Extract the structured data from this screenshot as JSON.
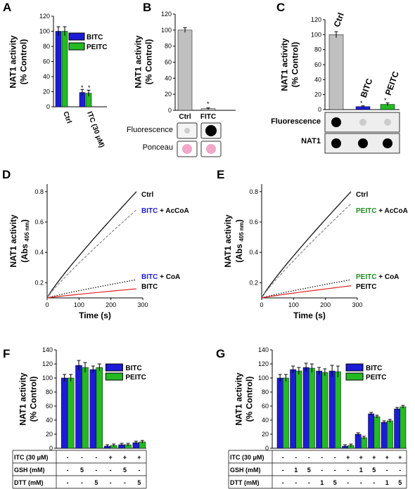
{
  "colors": {
    "bitc": "#1c1cd8",
    "peitc": "#22bb22",
    "ctrl": "#c0c0c0",
    "red": "#e02020",
    "dashed": "#888888",
    "green_text": "#1a8f1a",
    "blue_text": "#1a1ae0"
  },
  "panels": {
    "A": "A",
    "B": "B",
    "C": "C",
    "D": "D",
    "E": "E",
    "F": "F",
    "G": "G"
  },
  "ylabel_pct": [
    "NAT1 activity",
    "(% Control)"
  ],
  "ylabel_abs": [
    "NAT1 activity",
    "(Abs ",
    "405 nm",
    ")"
  ],
  "xlabel_time": "Time (s)",
  "blot_labels": {
    "fluor": "Fluorescence",
    "ponceau": "Ponceau",
    "nat1": "NAT1"
  },
  "table_rows": {
    "itc": "ITC (30 μM)",
    "gsh": "GSH (mM)",
    "dtt": "DTT (mM)"
  },
  "chart_data": [
    {
      "id": "A",
      "type": "bar",
      "categories": [
        "Ctrl",
        "ITC (30 μM)"
      ],
      "series": [
        {
          "name": "BITC",
          "values": [
            100,
            19
          ],
          "errors": [
            6,
            4
          ]
        },
        {
          "name": "PEITC",
          "values": [
            100,
            18
          ],
          "errors": [
            6,
            4
          ]
        }
      ],
      "ylim": [
        0,
        120
      ],
      "yticks": [
        0,
        20,
        40,
        60,
        80,
        100,
        120
      ],
      "annotations": [
        "*",
        "*"
      ]
    },
    {
      "id": "B",
      "type": "bar",
      "categories": [
        "Ctrl",
        "FITC"
      ],
      "values": [
        100,
        2
      ],
      "errors": [
        3,
        1
      ],
      "ylim": [
        0,
        120
      ],
      "yticks": [
        0,
        20,
        40,
        60,
        80,
        100,
        120
      ],
      "annotations": [
        "*"
      ]
    },
    {
      "id": "C",
      "type": "bar",
      "categories": [
        "Ctrl",
        "BITC",
        "PEITC"
      ],
      "values": [
        100,
        4,
        7
      ],
      "errors": [
        4,
        1,
        2
      ],
      "ylim": [
        0,
        120
      ],
      "yticks": [
        0,
        20,
        40,
        60,
        80,
        100,
        120
      ],
      "annotations": [
        "*",
        "*"
      ]
    },
    {
      "id": "D",
      "type": "line",
      "xlim": [
        0,
        300
      ],
      "ylim": [
        0.1,
        0.85
      ],
      "xticks": [
        0,
        100,
        200,
        300
      ],
      "yticks": [
        0.2,
        0.4,
        0.6,
        0.8
      ],
      "series": [
        {
          "name": "Ctrl",
          "x": [
            0,
            280
          ],
          "y": [
            0.1,
            0.8
          ],
          "style": "solid"
        },
        {
          "name": "+ AcCoA",
          "x": [
            0,
            280
          ],
          "y": [
            0.1,
            0.68
          ],
          "style": "dashed"
        },
        {
          "name": "+ CoA",
          "x": [
            0,
            280
          ],
          "y": [
            0.1,
            0.22
          ],
          "style": "dotted"
        },
        {
          "name": "",
          "x": [
            0,
            280
          ],
          "y": [
            0.1,
            0.16
          ],
          "style": "red"
        }
      ]
    },
    {
      "id": "E",
      "type": "line",
      "xlim": [
        0,
        300
      ],
      "ylim": [
        0.1,
        0.85
      ],
      "xticks": [
        0,
        100,
        200,
        300
      ],
      "yticks": [
        0.2,
        0.4,
        0.6,
        0.8
      ],
      "series": [
        {
          "name": "Ctrl",
          "x": [
            0,
            280
          ],
          "y": [
            0.1,
            0.8
          ],
          "style": "solid"
        },
        {
          "name": "+ AcCoA",
          "x": [
            0,
            280
          ],
          "y": [
            0.1,
            0.72
          ],
          "style": "dashed"
        },
        {
          "name": "+ CoA",
          "x": [
            0,
            280
          ],
          "y": [
            0.1,
            0.22
          ],
          "style": "dotted"
        },
        {
          "name": "",
          "x": [
            0,
            280
          ],
          "y": [
            0.1,
            0.18
          ],
          "style": "red"
        }
      ]
    },
    {
      "id": "F",
      "type": "bar",
      "legend": [
        "BITC",
        "PEITC"
      ],
      "ylim": [
        0,
        140
      ],
      "yticks": [
        0,
        20,
        40,
        60,
        80,
        100,
        120,
        140
      ],
      "groups": [
        {
          "bitc": 100,
          "peitc": 100,
          "eb": 5,
          "ep": 5
        },
        {
          "bitc": 118,
          "peitc": 115,
          "eb": 7,
          "ep": 7
        },
        {
          "bitc": 112,
          "peitc": 115,
          "eb": 5,
          "ep": 5
        },
        {
          "bitc": 3,
          "peitc": 4,
          "eb": 2,
          "ep": 2
        },
        {
          "bitc": 5,
          "peitc": 5,
          "eb": 2,
          "ep": 2
        },
        {
          "bitc": 8,
          "peitc": 9,
          "eb": 2,
          "ep": 2
        }
      ],
      "table": {
        "itc": [
          "-",
          "-",
          "-",
          "+",
          "+",
          "+"
        ],
        "gsh": [
          "-",
          "5",
          "-",
          "-",
          "5",
          "-"
        ],
        "dtt": [
          "-",
          "-",
          "5",
          "-",
          "-",
          "5"
        ]
      }
    },
    {
      "id": "G",
      "type": "bar",
      "legend": [
        "BITC",
        "PEITC"
      ],
      "ylim": [
        0,
        140
      ],
      "yticks": [
        0,
        20,
        40,
        60,
        80,
        100,
        120,
        140
      ],
      "groups": [
        {
          "bitc": 100,
          "peitc": 100,
          "eb": 5,
          "ep": 5
        },
        {
          "bitc": 112,
          "peitc": 110,
          "eb": 5,
          "ep": 5
        },
        {
          "bitc": 115,
          "peitc": 114,
          "eb": 6,
          "ep": 6
        },
        {
          "bitc": 110,
          "peitc": 108,
          "eb": 5,
          "ep": 5
        },
        {
          "bitc": 110,
          "peitc": 109,
          "eb": 8,
          "ep": 8
        },
        {
          "bitc": 3,
          "peitc": 4,
          "eb": 2,
          "ep": 2
        },
        {
          "bitc": 20,
          "peitc": 15,
          "eb": 2,
          "ep": 2
        },
        {
          "bitc": 49,
          "peitc": 45,
          "eb": 2,
          "ep": 2
        },
        {
          "bitc": 37,
          "peitc": 39,
          "eb": 2,
          "ep": 2
        },
        {
          "bitc": 56,
          "peitc": 59,
          "eb": 2,
          "ep": 2
        }
      ],
      "table": {
        "itc": [
          "-",
          "-",
          "-",
          "-",
          "-",
          "+",
          "+",
          "+",
          "+",
          "+"
        ],
        "gsh": [
          "-",
          "1",
          "5",
          "-",
          "-",
          "-",
          "1",
          "5",
          "-",
          "-"
        ],
        "dtt": [
          "-",
          "-",
          "-",
          "1",
          "5",
          "-",
          "-",
          "-",
          "1",
          "5"
        ]
      }
    }
  ],
  "line_labels": {
    "ctrl": "Ctrl",
    "accoa": "+ AcCoA",
    "coa": "+ CoA",
    "bitc": "BITC",
    "peitc": "PEITC"
  }
}
